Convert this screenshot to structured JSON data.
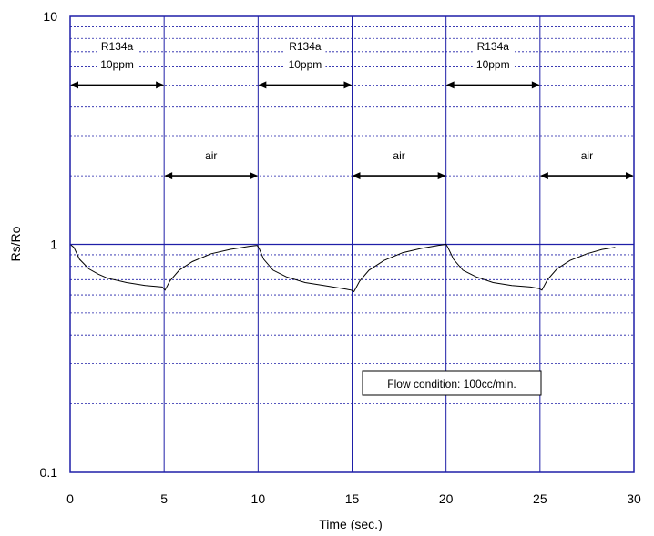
{
  "chart_data": {
    "type": "line",
    "xlabel": "Time (sec.)",
    "ylabel": "Rs/Ro",
    "xlim": [
      0,
      30
    ],
    "ylim": [
      0.1,
      10
    ],
    "yscale": "log",
    "x_ticks": [
      "0",
      "5",
      "10",
      "15",
      "20",
      "25",
      "30"
    ],
    "y_ticks": [
      "0.1",
      "1",
      "10"
    ],
    "grid": "horizontal log minor lines dashed, vertical lines every 5 sec",
    "series": [
      {
        "color": "#000000",
        "x": [
          0,
          0.2,
          0.5,
          1,
          1.5,
          2,
          3,
          4,
          4.9,
          5.05,
          5.3,
          5.8,
          6.5,
          7.5,
          8.5,
          9.5,
          9.95,
          10.05,
          10.3,
          10.8,
          11.5,
          12.5,
          13.5,
          14.5,
          14.95,
          15.1,
          15.4,
          15.9,
          16.7,
          17.7,
          18.7,
          19.6,
          20,
          20.1,
          20.4,
          20.9,
          21.6,
          22.5,
          23.5,
          24.5,
          24.95,
          25.1,
          25.4,
          25.9,
          26.6,
          27.5,
          28.3,
          29
        ],
        "y": [
          1.0,
          0.97,
          0.86,
          0.78,
          0.74,
          0.71,
          0.68,
          0.66,
          0.65,
          0.63,
          0.69,
          0.77,
          0.84,
          0.91,
          0.95,
          0.98,
          0.99,
          0.96,
          0.86,
          0.77,
          0.72,
          0.68,
          0.66,
          0.64,
          0.63,
          0.62,
          0.69,
          0.77,
          0.85,
          0.92,
          0.96,
          0.99,
          1.0,
          0.97,
          0.86,
          0.77,
          0.72,
          0.68,
          0.66,
          0.65,
          0.64,
          0.63,
          0.7,
          0.78,
          0.85,
          0.91,
          0.95,
          0.97
        ]
      }
    ],
    "annotations": {
      "gas_label": "R134a",
      "gas_conc": "10ppm",
      "air_label": "air",
      "flow_condition": "Flow condition: 100cc/min.",
      "gas_intervals": [
        [
          0,
          5
        ],
        [
          10,
          15
        ],
        [
          20,
          25
        ]
      ],
      "air_intervals": [
        [
          5,
          10
        ],
        [
          15,
          20
        ],
        [
          25,
          30
        ]
      ],
      "gas_arrow_y": 5,
      "air_arrow_y": 2
    },
    "colors": {
      "frame": "#1f1fa8",
      "grid": "#1f1fa8",
      "curve": "#000000"
    }
  }
}
